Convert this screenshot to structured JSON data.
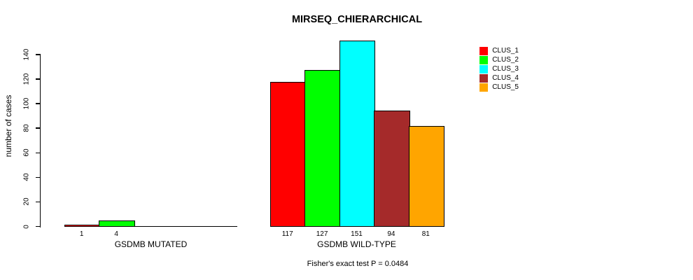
{
  "chart_data": {
    "type": "bar",
    "title": "MIRSEQ_CHIERARCHICAL",
    "ylabel": "number of cases",
    "xlabel": "",
    "ylim": [
      0,
      140
    ],
    "yticks": [
      0,
      20,
      40,
      60,
      80,
      100,
      120,
      140
    ],
    "grid": false,
    "legend_position": "right",
    "clusters": [
      {
        "name": "CLUS_1",
        "color": "#FF0000"
      },
      {
        "name": "CLUS_2",
        "color": "#00FF00"
      },
      {
        "name": "CLUS_3",
        "color": "#00FFFF"
      },
      {
        "name": "CLUS_4",
        "color": "#A52A2A"
      },
      {
        "name": "CLUS_5",
        "color": "#FFA500"
      }
    ],
    "groups": [
      {
        "label": "GSDMB MUTATED",
        "categories": [
          "CLUS_1",
          "CLUS_2"
        ],
        "values": [
          1,
          4
        ]
      },
      {
        "label": "GSDMB WILD-TYPE",
        "categories": [
          "CLUS_1",
          "CLUS_2",
          "CLUS_3",
          "CLUS_4",
          "CLUS_5"
        ],
        "values": [
          117,
          127,
          151,
          94,
          81
        ]
      }
    ],
    "annotation": "Fisher's exact test P = 0.0484",
    "colors": {
      "background": "#FFFFFF",
      "axis": "#000000",
      "text": "#000000"
    }
  }
}
